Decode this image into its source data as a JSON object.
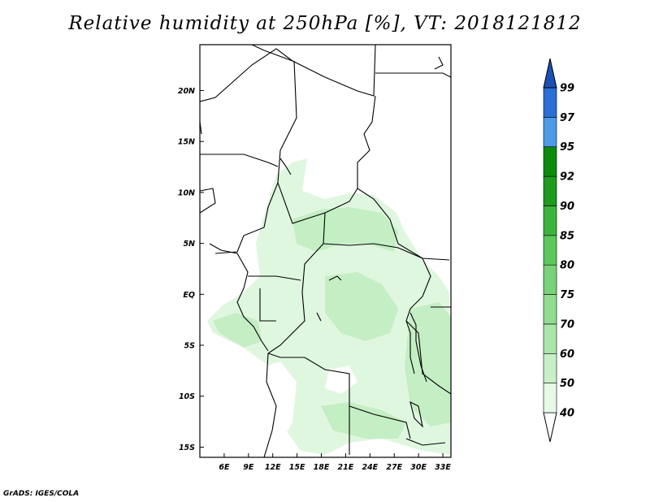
{
  "title": "Relative humidity at 250hPa [%], VT: 2018121812",
  "credit": "GrADS: IGES/COLA",
  "map": {
    "lon_range": [
      3,
      34
    ],
    "lat_range": [
      -16,
      24.5
    ],
    "x_ticks": [
      "6E",
      "9E",
      "12E",
      "15E",
      "18E",
      "21E",
      "24E",
      "27E",
      "30E",
      "33E"
    ],
    "x_tick_values": [
      6,
      9,
      12,
      15,
      18,
      21,
      24,
      27,
      30,
      33
    ],
    "y_ticks": [
      "20N",
      "15N",
      "10N",
      "5N",
      "EQ",
      "5S",
      "10S",
      "15S"
    ],
    "y_tick_values": [
      20,
      15,
      10,
      5,
      0,
      -5,
      -10,
      -15
    ]
  },
  "colorbar": {
    "levels": [
      "40",
      "50",
      "60",
      "70",
      "75",
      "80",
      "85",
      "90",
      "92",
      "95",
      "97",
      "99"
    ],
    "colors": [
      "#ffffff",
      "#e6fae6",
      "#c8f0c8",
      "#aae6aa",
      "#90dc90",
      "#78d278",
      "#5ac85a",
      "#3cb43c",
      "#1e9b1e",
      "#0a8c0a",
      "#4d9ae6",
      "#2a6fd6",
      "#1a50b4"
    ]
  }
}
